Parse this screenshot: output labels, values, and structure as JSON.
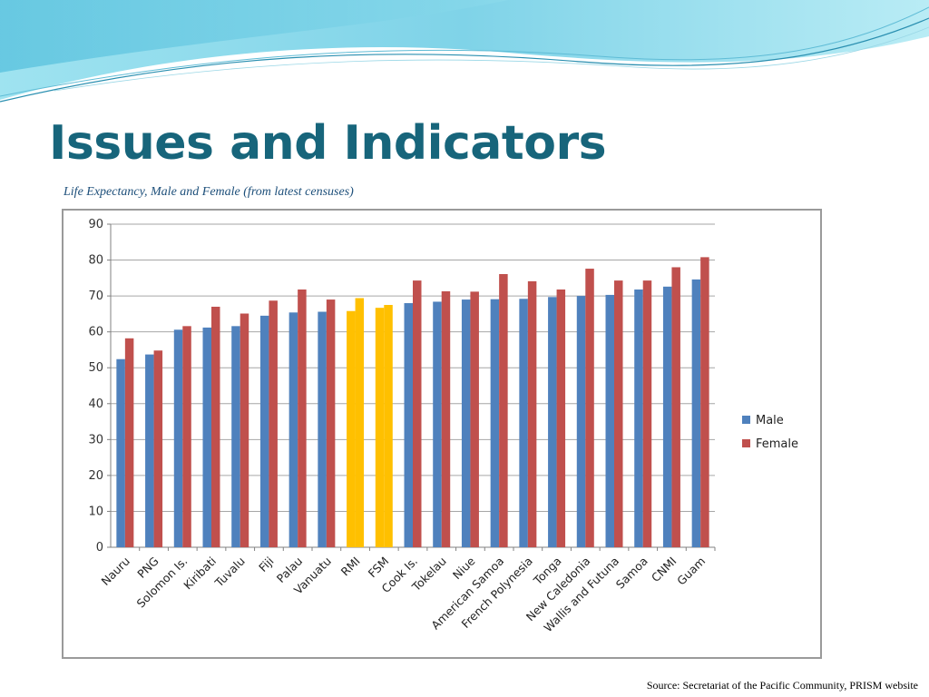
{
  "slide": {
    "title": "Issues and Indicators",
    "subtitle": "Life Expectancy, Male and Female (from latest censuses)",
    "source": "Source: Secretariat of the Pacific Community, PRISM website"
  },
  "colors": {
    "title": "#17657b",
    "male": "#4f81bd",
    "female": "#c0504d",
    "highlight": "#ffc000",
    "gridline": "#a6a6a6"
  },
  "chart_data": {
    "type": "bar",
    "categories": [
      "Nauru",
      "PNG",
      "Solomon Is.",
      "Kiribati",
      "Tuvalu",
      "Fiji",
      "Palau",
      "Vanuatu",
      "RMI",
      "FSM",
      "Cook Is.",
      "Tokelau",
      "Niue",
      "American Samoa",
      "French Polynesia",
      "Tonga",
      "New Caledonia",
      "Wallis and Futuna",
      "Samoa",
      "CNMI",
      "Guam"
    ],
    "series": [
      {
        "name": "Male",
        "values": [
          52.4,
          53.7,
          60.6,
          61.2,
          61.6,
          64.5,
          65.4,
          65.6,
          65.8,
          66.7,
          68.0,
          68.4,
          69.0,
          69.1,
          69.2,
          69.7,
          70.0,
          70.3,
          71.8,
          72.6,
          74.6
        ]
      },
      {
        "name": "Female",
        "values": [
          58.2,
          54.8,
          61.6,
          67.0,
          65.1,
          68.7,
          71.8,
          69.0,
          69.4,
          67.5,
          74.3,
          71.3,
          71.2,
          76.1,
          74.1,
          71.8,
          77.6,
          74.3,
          74.3,
          78.0,
          80.8
        ]
      }
    ],
    "highlighted_categories": [
      "RMI",
      "FSM"
    ],
    "ylim": [
      0,
      90
    ],
    "yticks": [
      0,
      10,
      20,
      30,
      40,
      50,
      60,
      70,
      80,
      90
    ],
    "grid": true,
    "legend_position": "right"
  }
}
